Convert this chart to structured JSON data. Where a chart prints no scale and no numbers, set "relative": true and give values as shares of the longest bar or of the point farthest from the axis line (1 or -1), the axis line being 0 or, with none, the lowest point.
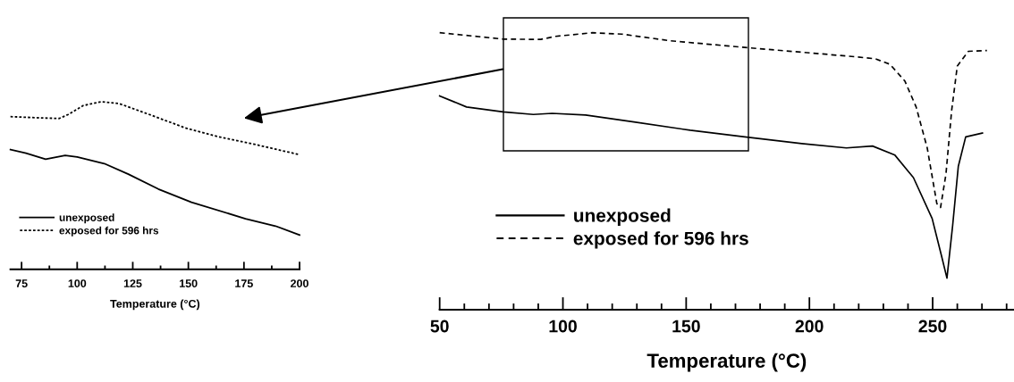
{
  "chart_data": [
    {
      "type": "line",
      "relative": true,
      "xlabel": "Temperature (°C)",
      "xlim": [
        70,
        200
      ],
      "xticks": [
        75,
        {
          "value": 87.5,
          "label": null
        },
        100,
        {
          "value": 112.5,
          "label": null
        },
        125,
        {
          "value": 137.5,
          "label": null
        },
        150,
        {
          "value": 162.5,
          "label": null
        },
        175,
        {
          "value": 187.5,
          "label": null
        },
        200
      ],
      "legend": "lower left",
      "grid": false,
      "series": [
        {
          "name": "unexposed",
          "color": "#000000",
          "line_style": "solid",
          "x": [
            70,
            77,
            85.8,
            94.6,
            100,
            112.2,
            123,
            136.5,
            151.4,
            175.7,
            189.2,
            200
          ],
          "values": [
            0.714,
            0.693,
            0.657,
            0.68,
            0.67,
            0.631,
            0.568,
            0.479,
            0.4,
            0.302,
            0.258,
            0.205
          ]
        },
        {
          "name": "exposed for 596 hrs",
          "color": "#000000",
          "line_style": "dotted",
          "x": [
            70,
            85.1,
            91.9,
            96,
            102.7,
            110.8,
            118.9,
            132.4,
            148.6,
            163.5,
            179.7,
            200
          ],
          "values": [
            0.911,
            0.903,
            0.9,
            0.924,
            0.977,
            1.0,
            0.989,
            0.924,
            0.844,
            0.791,
            0.746,
            0.684
          ]
        }
      ]
    },
    {
      "type": "line",
      "relative": true,
      "xlabel": "Temperature (°C)",
      "xlim": [
        50,
        283
      ],
      "xticks": [
        50,
        {
          "value": 60,
          "label": null
        },
        {
          "value": 70,
          "label": null
        },
        {
          "value": 80,
          "label": null
        },
        {
          "value": 90,
          "label": null
        },
        100,
        {
          "value": 110,
          "label": null
        },
        {
          "value": 120,
          "label": null
        },
        {
          "value": 130,
          "label": null
        },
        {
          "value": 140,
          "label": null
        },
        150,
        {
          "value": 160,
          "label": null
        },
        {
          "value": 170,
          "label": null
        },
        {
          "value": 180,
          "label": null
        },
        {
          "value": 190,
          "label": null
        },
        200,
        {
          "value": 210,
          "label": null
        },
        {
          "value": 220,
          "label": null
        },
        {
          "value": 230,
          "label": null
        },
        {
          "value": 240,
          "label": null
        },
        250,
        {
          "value": 260,
          "label": null
        },
        {
          "value": 270,
          "label": null
        },
        {
          "value": 280,
          "label": null
        }
      ],
      "legend": "lower left",
      "grid": false,
      "series": [
        {
          "name": "unexposed",
          "color": "#000000",
          "line_style": "solid",
          "x": [
            50,
            60.9,
            75.8,
            88,
            95.6,
            109.2,
            128.8,
            151.6,
            173.8,
            196.9,
            215,
            225.6,
            234.7,
            242.2,
            249.8,
            253.6,
            255.8,
            258.1,
            260.4,
            263.4,
            270.2
          ],
          "values": [
            0.772,
            0.732,
            0.714,
            0.705,
            0.709,
            0.703,
            0.678,
            0.648,
            0.624,
            0.6,
            0.584,
            0.591,
            0.558,
            0.477,
            0.329,
            0.194,
            0.114,
            0.303,
            0.517,
            0.624,
            0.638
          ]
        },
        {
          "name": "exposed for 596 hrs",
          "color": "#000000",
          "line_style": "dashed",
          "x": [
            50,
            75.8,
            91,
            97,
            112,
            124,
            143.6,
            173.8,
            196.6,
            219,
            226.7,
            232.7,
            238.7,
            243.3,
            247.8,
            251.7,
            253.2,
            255.4,
            257.7,
            260,
            264.5,
            272
          ],
          "values": [
            1.0,
            0.977,
            0.976,
            0.987,
            1.0,
            0.995,
            0.971,
            0.947,
            0.93,
            0.913,
            0.906,
            0.886,
            0.826,
            0.732,
            0.584,
            0.383,
            0.369,
            0.49,
            0.719,
            0.88,
            0.933,
            0.936
          ]
        }
      ]
    }
  ]
}
